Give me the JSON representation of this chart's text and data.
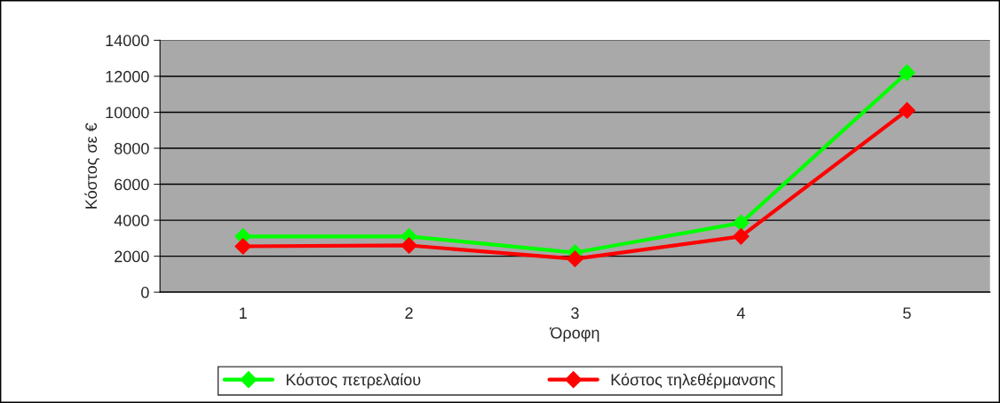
{
  "chart_data": {
    "type": "line",
    "xlabel": "Όροφη",
    "ylabel": "Κόστος σε €",
    "categories": [
      "1",
      "2",
      "3",
      "4",
      "5"
    ],
    "series": [
      {
        "name": "Κόστος πετρελαίου",
        "color": "#00ff00",
        "values": [
          3100,
          3100,
          2200,
          3850,
          12200
        ]
      },
      {
        "name": "Κόστος τηλεθέρμανσης",
        "color": "#ff0000",
        "values": [
          2550,
          2600,
          1850,
          3100,
          10100
        ]
      }
    ],
    "ylim": [
      0,
      14000
    ],
    "yticks": [
      0,
      2000,
      4000,
      6000,
      8000,
      10000,
      12000,
      14000
    ],
    "grid": "y",
    "legend": "bottom",
    "marker": "diamond",
    "line_style": "solid"
  }
}
